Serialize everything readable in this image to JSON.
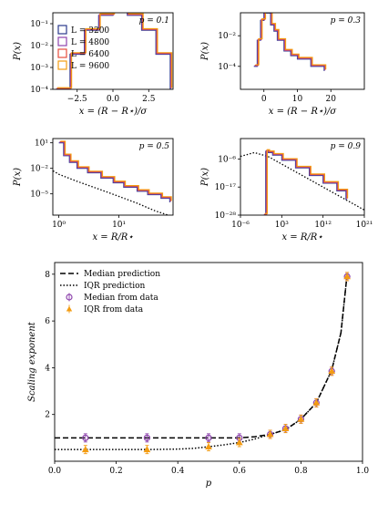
{
  "chart_data": [
    {
      "type": "line",
      "panel": "top-left",
      "annotation": "p = 0.1",
      "xlabel": "x = (R − R⋆)/σ",
      "ylabel": "P(x)",
      "xlim": [
        -4.2,
        4.2
      ],
      "yscale": "log",
      "ylim_exp": [
        -4,
        -0.5
      ],
      "xticks": [
        -2.5,
        0.0,
        2.5
      ],
      "xtick_labels": [
        "−2.5",
        "0.0",
        "2.5"
      ],
      "ytick_exps": [
        -4,
        -3,
        -2,
        -1
      ],
      "ytick_labels": [
        "10⁻⁴",
        "10⁻³",
        "10⁻²",
        "10⁻¹"
      ],
      "legend_position": "left",
      "series": [
        {
          "name": "L = 3200",
          "color": "#2b3a8c",
          "x": [
            -4.0,
            -3.0,
            -2.0,
            -1.0,
            0.0,
            1.0,
            2.0,
            3.0,
            4.0
          ],
          "y": [
            0.0001,
            0.004,
            0.05,
            0.24,
            0.4,
            0.24,
            0.05,
            0.004,
            0.0001
          ]
        },
        {
          "name": "L = 4800",
          "color": "#8e44ad",
          "x": [
            -4.0,
            -3.0,
            -2.0,
            -1.0,
            0.0,
            1.0,
            2.0,
            3.0,
            4.0
          ],
          "y": [
            0.0001,
            0.004,
            0.05,
            0.24,
            0.4,
            0.24,
            0.05,
            0.004,
            0.0001
          ]
        },
        {
          "name": "L = 6400",
          "color": "#e74c3c",
          "x": [
            -4.0,
            -3.0,
            -2.0,
            -1.0,
            0.0,
            1.0,
            2.0,
            3.0,
            4.0
          ],
          "y": [
            0.0001,
            0.004,
            0.05,
            0.24,
            0.4,
            0.24,
            0.05,
            0.004,
            0.0001
          ]
        },
        {
          "name": "L = 9600",
          "color": "#f39c12",
          "x": [
            -4.0,
            -3.0,
            -2.0,
            -1.0,
            0.0,
            1.0,
            2.0,
            3.0,
            4.0
          ],
          "y": [
            0.0001,
            0.004,
            0.05,
            0.24,
            0.4,
            0.24,
            0.05,
            0.004,
            0.0001
          ]
        }
      ]
    },
    {
      "type": "line",
      "panel": "top-right",
      "annotation": "p = 0.3",
      "xlabel": "x = (R − R⋆)/σ",
      "ylabel": "P(x)",
      "xlim": [
        -7,
        30
      ],
      "yscale": "log",
      "ylim_exp": [
        -5.5,
        -0.5
      ],
      "xticks": [
        0,
        10,
        20
      ],
      "xtick_labels": [
        "0",
        "10",
        "20"
      ],
      "ytick_exps": [
        -4,
        -2
      ],
      "ytick_labels": [
        "10⁻⁴",
        "10⁻²"
      ],
      "series": [
        {
          "color": "#2b3a8c",
          "x": [
            -3,
            -2,
            -1,
            0,
            1,
            2,
            3,
            4,
            6,
            8,
            10,
            14,
            18
          ],
          "y": [
            0.0001,
            0.005,
            0.1,
            0.3,
            0.3,
            0.05,
            0.02,
            0.005,
            0.001,
            0.0005,
            0.0003,
            0.0001,
            5e-05
          ]
        },
        {
          "color": "#8e44ad",
          "x": [
            -3,
            -2,
            -1,
            0,
            1,
            2,
            3,
            4,
            6,
            8,
            10,
            14,
            18
          ],
          "y": [
            0.0001,
            0.005,
            0.1,
            0.3,
            0.3,
            0.05,
            0.02,
            0.005,
            0.001,
            0.0005,
            0.0003,
            0.0001,
            5e-05
          ]
        },
        {
          "color": "#e74c3c",
          "x": [
            -3,
            -2,
            -1,
            0,
            1,
            2,
            3,
            4,
            6,
            8,
            10,
            14,
            18
          ],
          "y": [
            0.0001,
            0.005,
            0.1,
            0.3,
            0.3,
            0.05,
            0.02,
            0.005,
            0.001,
            0.0005,
            0.0003,
            0.0001,
            5e-05
          ]
        },
        {
          "color": "#f39c12",
          "x": [
            -3,
            -2,
            -1,
            0,
            1,
            2,
            3,
            4,
            6,
            8,
            10,
            14,
            18
          ],
          "y": [
            0.0001,
            0.005,
            0.1,
            0.3,
            0.3,
            0.05,
            0.02,
            0.005,
            0.001,
            0.0005,
            0.0003,
            0.0001,
            5e-05
          ]
        }
      ]
    },
    {
      "type": "line",
      "panel": "middle-left",
      "annotation": "p = 0.5",
      "xlabel": "x = R/R⋆",
      "ylabel": "P(x)",
      "xscale": "log",
      "xlim_exp": [
        -0.1,
        1.9
      ],
      "yscale": "log",
      "ylim_exp": [
        -7.5,
        1.5
      ],
      "xtick_exps": [
        0,
        1
      ],
      "xtick_labels": [
        "10⁰",
        "10¹"
      ],
      "ytick_exps": [
        -5,
        -2,
        1
      ],
      "ytick_labels": [
        "10⁻⁵",
        "10⁻²",
        "10¹"
      ],
      "prediction": {
        "style": "dotted",
        "x": [
          0.8,
          1,
          2,
          5,
          10,
          20,
          40,
          80
        ],
        "y": [
          0.005,
          0.002,
          0.0003,
          3e-05,
          5e-06,
          8e-07,
          1e-07,
          2e-08
        ]
      },
      "series": [
        {
          "color": "#2b3a8c",
          "x": [
            1,
            1.2,
            1.5,
            2,
            3,
            5,
            8,
            12,
            20,
            30,
            50,
            70
          ],
          "y": [
            10,
            0.3,
            0.05,
            0.01,
            0.003,
            0.0007,
            0.0002,
            6e-05,
            2e-05,
            8e-06,
            3e-06,
            1e-06
          ]
        },
        {
          "color": "#8e44ad",
          "x": [
            1,
            1.2,
            1.5,
            2,
            3,
            5,
            8,
            12,
            20,
            30,
            50,
            70
          ],
          "y": [
            10,
            0.3,
            0.05,
            0.01,
            0.003,
            0.0007,
            0.0002,
            6e-05,
            2e-05,
            8e-06,
            3e-06,
            1e-06
          ]
        },
        {
          "color": "#e74c3c",
          "x": [
            1,
            1.2,
            1.5,
            2,
            3,
            5,
            8,
            12,
            20,
            30,
            50,
            70
          ],
          "y": [
            10,
            0.3,
            0.05,
            0.01,
            0.003,
            0.0007,
            0.0002,
            6e-05,
            2e-05,
            8e-06,
            3e-06,
            1e-06
          ]
        },
        {
          "color": "#f39c12",
          "x": [
            1,
            1.2,
            1.5,
            2,
            3,
            5,
            8,
            12,
            20,
            30,
            50,
            70
          ],
          "y": [
            10,
            0.3,
            0.05,
            0.01,
            0.003,
            0.0007,
            0.0002,
            6e-05,
            2e-05,
            8e-06,
            3e-06,
            1e-06
          ]
        }
      ]
    },
    {
      "type": "line",
      "panel": "middle-right",
      "annotation": "p = 0.9",
      "xlabel": "x = R/R⋆",
      "ylabel": "P(x)",
      "xscale": "log",
      "xlim_exp": [
        -6,
        21
      ],
      "yscale": "log",
      "ylim_exp": [
        -28,
        2
      ],
      "xtick_exps": [
        -6,
        3,
        12,
        21
      ],
      "xtick_labels": [
        "10⁻⁶",
        "10³",
        "10¹²",
        "10²¹"
      ],
      "ytick_exps": [
        -28,
        -17,
        -6
      ],
      "ytick_labels": [
        "10⁻²⁸",
        "10⁻¹⁷",
        "10⁻⁶"
      ],
      "prediction": {
        "style": "dotted",
        "x_exp": [
          -6,
          -3,
          0,
          3,
          6,
          9,
          12,
          15,
          18,
          21
        ],
        "y_exp": [
          -5,
          -3.5,
          -5,
          -8,
          -11,
          -14,
          -17,
          -20,
          -23,
          -26
        ]
      },
      "series": [
        {
          "color": "#2b3a8c",
          "x_exp": [
            -1,
            -0.5,
            0,
            1,
            3,
            6,
            9,
            12,
            15,
            17
          ],
          "y_exp": [
            -28,
            -3,
            -3.5,
            -4.5,
            -6.5,
            -9.5,
            -12.5,
            -15.5,
            -18.5,
            -22
          ]
        },
        {
          "color": "#8e44ad",
          "x_exp": [
            -1,
            -0.5,
            0,
            1,
            3,
            6,
            9,
            12,
            15,
            17
          ],
          "y_exp": [
            -28,
            -3,
            -3.5,
            -4.5,
            -6.5,
            -9.5,
            -12.5,
            -15.5,
            -18.5,
            -22
          ]
        },
        {
          "color": "#e74c3c",
          "x_exp": [
            -1,
            -0.5,
            0,
            1,
            3,
            6,
            9,
            12,
            15,
            17
          ],
          "y_exp": [
            -28,
            -3,
            -3.5,
            -4.5,
            -6.5,
            -9.5,
            -12.5,
            -15.5,
            -18.5,
            -22
          ]
        },
        {
          "color": "#f39c12",
          "x_exp": [
            -1,
            -0.5,
            0,
            1,
            3,
            6,
            9,
            12,
            15,
            17
          ],
          "y_exp": [
            -28,
            -3,
            -3.5,
            -4.5,
            -6.5,
            -9.5,
            -12.5,
            -15.5,
            -18.5,
            -22
          ]
        }
      ]
    },
    {
      "type": "scatter",
      "panel": "bottom",
      "xlabel": "p",
      "ylabel": "Scaling exponent",
      "xlim": [
        0.0,
        1.0
      ],
      "ylim": [
        0,
        8.5
      ],
      "xticks": [
        0.0,
        0.2,
        0.4,
        0.6,
        0.8,
        1.0
      ],
      "xtick_labels": [
        "0.0",
        "0.2",
        "0.4",
        "0.6",
        "0.8",
        "1.0"
      ],
      "yticks": [
        2,
        4,
        6,
        8
      ],
      "ytick_labels": [
        "2",
        "4",
        "6",
        "8"
      ],
      "legend_position": "top-left",
      "lines": [
        {
          "name": "Median prediction",
          "style": "dashed",
          "x": [
            0.0,
            0.1,
            0.2,
            0.3,
            0.4,
            0.5,
            0.6,
            0.65,
            0.7,
            0.75,
            0.8,
            0.85,
            0.9,
            0.93,
            0.95
          ],
          "y": [
            1.0,
            1.0,
            1.0,
            1.0,
            1.0,
            1.0,
            1.0,
            1.05,
            1.15,
            1.35,
            1.8,
            2.5,
            3.9,
            5.5,
            8.0
          ]
        },
        {
          "name": "IQR prediction",
          "style": "dotted",
          "x": [
            0.0,
            0.1,
            0.2,
            0.3,
            0.4,
            0.45,
            0.5,
            0.55,
            0.6,
            0.65,
            0.7,
            0.75,
            0.8,
            0.85,
            0.9,
            0.93,
            0.95
          ],
          "y": [
            0.5,
            0.5,
            0.5,
            0.5,
            0.52,
            0.55,
            0.62,
            0.7,
            0.8,
            0.95,
            1.15,
            1.35,
            1.8,
            2.5,
            3.9,
            5.5,
            8.0
          ]
        }
      ],
      "series": [
        {
          "name": "Median from data",
          "marker": "circle",
          "color": "#8e44ad",
          "x": [
            0.1,
            0.3,
            0.5,
            0.6,
            0.7,
            0.75,
            0.8,
            0.85,
            0.9,
            0.95
          ],
          "y": [
            1.0,
            1.0,
            1.0,
            1.0,
            1.15,
            1.4,
            1.8,
            2.5,
            3.85,
            7.9
          ]
        },
        {
          "name": "IQR from data",
          "marker": "triangle",
          "color": "#f39c12",
          "x": [
            0.1,
            0.3,
            0.5,
            0.6,
            0.7,
            0.75,
            0.8,
            0.85,
            0.9,
            0.95
          ],
          "y": [
            0.5,
            0.5,
            0.62,
            0.8,
            1.15,
            1.4,
            1.8,
            2.5,
            3.85,
            7.9
          ]
        }
      ]
    }
  ]
}
